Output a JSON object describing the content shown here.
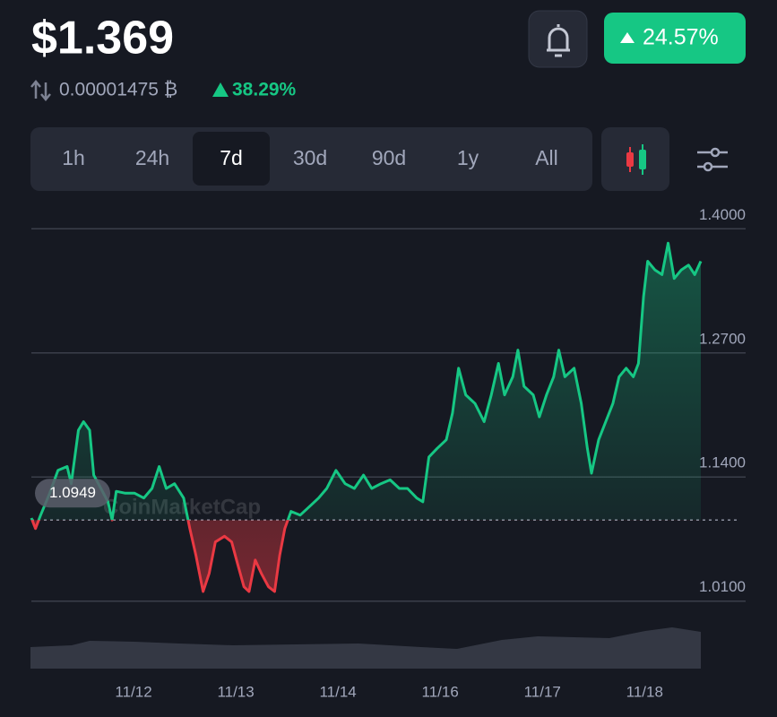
{
  "header": {
    "price": "$1.369",
    "btc_price": "0.00001475 ₿",
    "btc_change": "38.29%",
    "change_badge": "24.57%"
  },
  "tabs": {
    "items": [
      "1h",
      "24h",
      "7d",
      "30d",
      "90d",
      "1y",
      "All"
    ],
    "selected": 2
  },
  "chart_data": {
    "type": "line",
    "watermark": "CoinMarketCap",
    "baseline": {
      "value": 1.0949,
      "label": "1.0949"
    },
    "up_color": "#16c784",
    "down_color": "#ea3943",
    "xlim": [
      0,
      6.55
    ],
    "xticks": [
      {
        "value": 1,
        "label": "11/12"
      },
      {
        "value": 2,
        "label": "11/13"
      },
      {
        "value": 3,
        "label": "11/14"
      },
      {
        "value": 4,
        "label": "11/16"
      },
      {
        "value": 5,
        "label": "11/17"
      },
      {
        "value": 6,
        "label": "11/18"
      }
    ],
    "ylim": [
      0.99,
      1.42
    ],
    "yticks": [
      {
        "value": 1.01,
        "label": "1.0100"
      },
      {
        "value": 1.14,
        "label": "1.1400"
      },
      {
        "value": 1.27,
        "label": "1.2700"
      },
      {
        "value": 1.4,
        "label": "1.4000"
      }
    ],
    "grid": true,
    "x": [
      0,
      0.04,
      0.09,
      0.18,
      0.26,
      0.35,
      0.39,
      0.46,
      0.51,
      0.57,
      0.61,
      0.68,
      0.75,
      0.79,
      0.83,
      0.92,
      1.01,
      1.1,
      1.18,
      1.25,
      1.32,
      1.4,
      1.49,
      1.55,
      1.61,
      1.68,
      1.74,
      1.8,
      1.89,
      1.96,
      2.02,
      2.08,
      2.13,
      2.19,
      2.25,
      2.32,
      2.38,
      2.43,
      2.48,
      2.54,
      2.63,
      2.72,
      2.81,
      2.89,
      2.98,
      3.07,
      3.16,
      3.25,
      3.33,
      3.42,
      3.51,
      3.6,
      3.68,
      3.77,
      3.83,
      3.89,
      3.97,
      4.06,
      4.12,
      4.18,
      4.25,
      4.34,
      4.43,
      4.5,
      4.57,
      4.63,
      4.71,
      4.76,
      4.82,
      4.91,
      4.97,
      5.04,
      5.11,
      5.16,
      5.22,
      5.31,
      5.38,
      5.44,
      5.48,
      5.55,
      5.62,
      5.69,
      5.75,
      5.82,
      5.89,
      5.94,
      5.99,
      6.03,
      6.1,
      6.17,
      6.23,
      6.29,
      6.36,
      6.43,
      6.49,
      6.55
    ],
    "values": [
      1.097,
      1.086,
      1.1,
      1.123,
      1.147,
      1.151,
      1.133,
      1.189,
      1.198,
      1.189,
      1.142,
      1.128,
      1.114,
      1.095,
      1.125,
      1.123,
      1.123,
      1.118,
      1.128,
      1.151,
      1.128,
      1.133,
      1.118,
      1.086,
      1.058,
      1.02,
      1.039,
      1.072,
      1.078,
      1.072,
      1.048,
      1.025,
      1.02,
      1.053,
      1.039,
      1.025,
      1.02,
      1.058,
      1.086,
      1.104,
      1.1,
      1.109,
      1.118,
      1.128,
      1.147,
      1.133,
      1.128,
      1.142,
      1.128,
      1.133,
      1.137,
      1.128,
      1.128,
      1.118,
      1.114,
      1.161,
      1.17,
      1.179,
      1.207,
      1.254,
      1.226,
      1.217,
      1.198,
      1.226,
      1.259,
      1.226,
      1.245,
      1.273,
      1.235,
      1.226,
      1.203,
      1.226,
      1.245,
      1.273,
      1.245,
      1.254,
      1.217,
      1.17,
      1.144,
      1.179,
      1.198,
      1.217,
      1.245,
      1.254,
      1.245,
      1.259,
      1.329,
      1.366,
      1.357,
      1.352,
      1.385,
      1.348,
      1.357,
      1.362,
      1.352,
      1.366
    ]
  }
}
